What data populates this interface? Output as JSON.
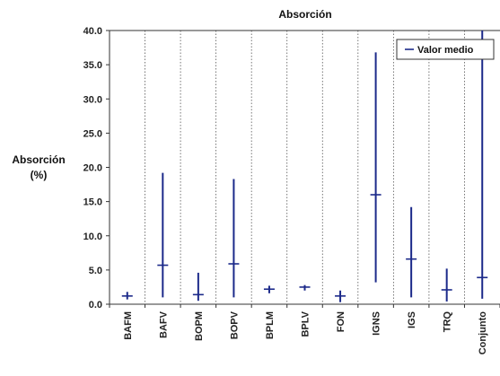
{
  "chart_data": {
    "type": "range",
    "title": "Absorción",
    "ylabel": "Absorción",
    "ylabel_unit": "(%)",
    "xlabel": "",
    "ylim": [
      0,
      40
    ],
    "yticks": [
      "0.0",
      "5.0",
      "10.0",
      "15.0",
      "20.0",
      "25.0",
      "30.0",
      "35.0",
      "40.0"
    ],
    "grid": "vertical dotted",
    "legend_position": "top-right",
    "legend": "Valor medio",
    "colors": {
      "range": "#1c2a8a",
      "mean": "#1c2a8a",
      "grid": "#555555"
    },
    "categories": [
      "BAFM",
      "BAFV",
      "BOPM",
      "BOPV",
      "BPLM",
      "BPLV",
      "FON",
      "IGNS",
      "IGS",
      "TRQ",
      "Conjunto"
    ],
    "min": [
      0.7,
      1.0,
      0.5,
      1.0,
      1.6,
      2.0,
      0.3,
      3.2,
      1.0,
      0.4,
      0.8
    ],
    "max": [
      1.8,
      19.2,
      4.6,
      18.3,
      2.7,
      2.8,
      2.0,
      36.8,
      14.2,
      5.2,
      40.0
    ],
    "mean": [
      1.2,
      5.7,
      1.4,
      5.9,
      2.2,
      2.5,
      1.2,
      16.0,
      6.6,
      2.1,
      3.9
    ]
  }
}
